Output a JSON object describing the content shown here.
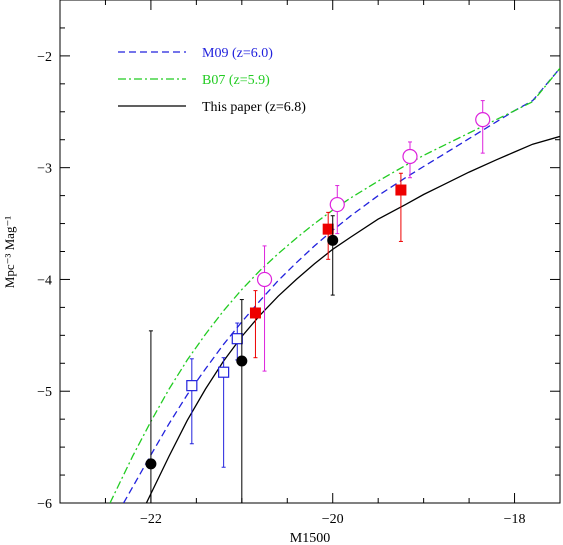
{
  "chart_data": {
    "type": "scatter",
    "xlabel": "M1500",
    "ylabel": "Mpc⁻³ Mag⁻¹",
    "xlim": [
      -23.0,
      -17.5
    ],
    "ylim": [
      -6,
      -1.5
    ],
    "x_ticks": [
      -22,
      -20,
      -18
    ],
    "x_tick_labels": [
      "−22",
      "−20",
      "−18"
    ],
    "y_ticks": [
      -6,
      -5,
      -4,
      -3,
      -2
    ],
    "y_tick_labels": [
      "−6",
      "−5",
      "−4",
      "−3",
      "−2"
    ],
    "x_minor_step": 0.5,
    "y_minor_step": 0.25,
    "grid": false,
    "legend_position": "top-left",
    "curves": [
      {
        "name": "M09 (z=6.0)",
        "color": "#2222dd",
        "style": "dashed",
        "x": [
          -22.3,
          -22.0,
          -21.8,
          -21.6,
          -21.4,
          -21.2,
          -21.0,
          -20.8,
          -20.6,
          -20.4,
          -20.2,
          -20.0,
          -19.8,
          -19.5,
          -19.2,
          -19.0,
          -18.8,
          -18.5,
          -18.2,
          -18.0,
          -17.8,
          -17.5
        ],
        "y": [
          -6.0,
          -5.57,
          -5.29,
          -5.03,
          -4.8,
          -4.58,
          -4.38,
          -4.19,
          -4.01,
          -3.85,
          -3.7,
          -3.56,
          -3.43,
          -3.25,
          -3.09,
          -2.99,
          -2.89,
          -2.74,
          -2.59,
          -2.49,
          -2.4,
          -2.11
        ]
      },
      {
        "name": "B07 (z=5.9)",
        "color": "#22cc22",
        "style": "dashdot",
        "x": [
          -22.45,
          -22.2,
          -22.0,
          -21.8,
          -21.6,
          -21.4,
          -21.2,
          -21.0,
          -20.8,
          -20.6,
          -20.4,
          -20.2,
          -20.0,
          -19.8,
          -19.5,
          -19.2,
          -19.0,
          -18.8,
          -18.5,
          -18.2,
          -18.0,
          -17.8,
          -17.5
        ],
        "y": [
          -6.0,
          -5.58,
          -5.27,
          -4.98,
          -4.72,
          -4.49,
          -4.28,
          -4.09,
          -3.92,
          -3.77,
          -3.63,
          -3.5,
          -3.38,
          -3.27,
          -3.12,
          -2.98,
          -2.89,
          -2.81,
          -2.69,
          -2.57,
          -2.49,
          -2.41,
          -2.11
        ]
      },
      {
        "name": "This paper (z=6.8)",
        "color": "#000000",
        "style": "solid",
        "x": [
          -22.05,
          -21.8,
          -21.6,
          -21.4,
          -21.2,
          -21.0,
          -20.8,
          -20.6,
          -20.4,
          -20.2,
          -20.0,
          -19.8,
          -19.5,
          -19.2,
          -19.0,
          -18.8,
          -18.5,
          -18.2,
          -18.0,
          -17.8,
          -17.5
        ],
        "y": [
          -6.0,
          -5.58,
          -5.26,
          -4.98,
          -4.73,
          -4.51,
          -4.32,
          -4.15,
          -4.0,
          -3.86,
          -3.73,
          -3.62,
          -3.46,
          -3.33,
          -3.24,
          -3.16,
          -3.04,
          -2.93,
          -2.86,
          -2.79,
          -2.72
        ]
      }
    ],
    "points": [
      {
        "marker": "open-square",
        "color": "#2222dd",
        "values": [
          {
            "x": -21.55,
            "y": -4.95,
            "ylo": -5.47,
            "yhi": -4.71
          },
          {
            "x": -21.2,
            "y": -4.83,
            "ylo": -5.68,
            "yhi": -4.7
          },
          {
            "x": -21.05,
            "y": -4.53,
            "ylo": -4.72,
            "yhi": -4.39
          }
        ]
      },
      {
        "marker": "filled-square",
        "color": "#ee0000",
        "values": [
          {
            "x": -20.85,
            "y": -4.3,
            "ylo": -4.7,
            "yhi": -4.1
          },
          {
            "x": -20.05,
            "y": -3.55,
            "ylo": -3.82,
            "yhi": -3.4
          },
          {
            "x": -19.25,
            "y": -3.2,
            "ylo": -3.66,
            "yhi": -3.05
          }
        ]
      },
      {
        "marker": "open-circle",
        "color": "#dd22dd",
        "values": [
          {
            "x": -20.75,
            "y": -4.0,
            "ylo": -4.82,
            "yhi": -3.7
          },
          {
            "x": -19.95,
            "y": -3.33,
            "ylo": -3.59,
            "yhi": -3.16
          },
          {
            "x": -19.15,
            "y": -2.9,
            "ylo": -3.09,
            "yhi": -2.77
          },
          {
            "x": -18.35,
            "y": -2.57,
            "ylo": -2.87,
            "yhi": -2.4
          }
        ]
      },
      {
        "marker": "filled-circle",
        "color": "#000000",
        "values": [
          {
            "x": -22.0,
            "y": -5.65,
            "ylo": -6.0,
            "yhi": -4.46
          },
          {
            "x": -21.0,
            "y": -4.73,
            "ylo": -6.0,
            "yhi": -4.18
          },
          {
            "x": -20.0,
            "y": -3.65,
            "ylo": -4.14,
            "yhi": -3.43
          }
        ]
      }
    ]
  }
}
